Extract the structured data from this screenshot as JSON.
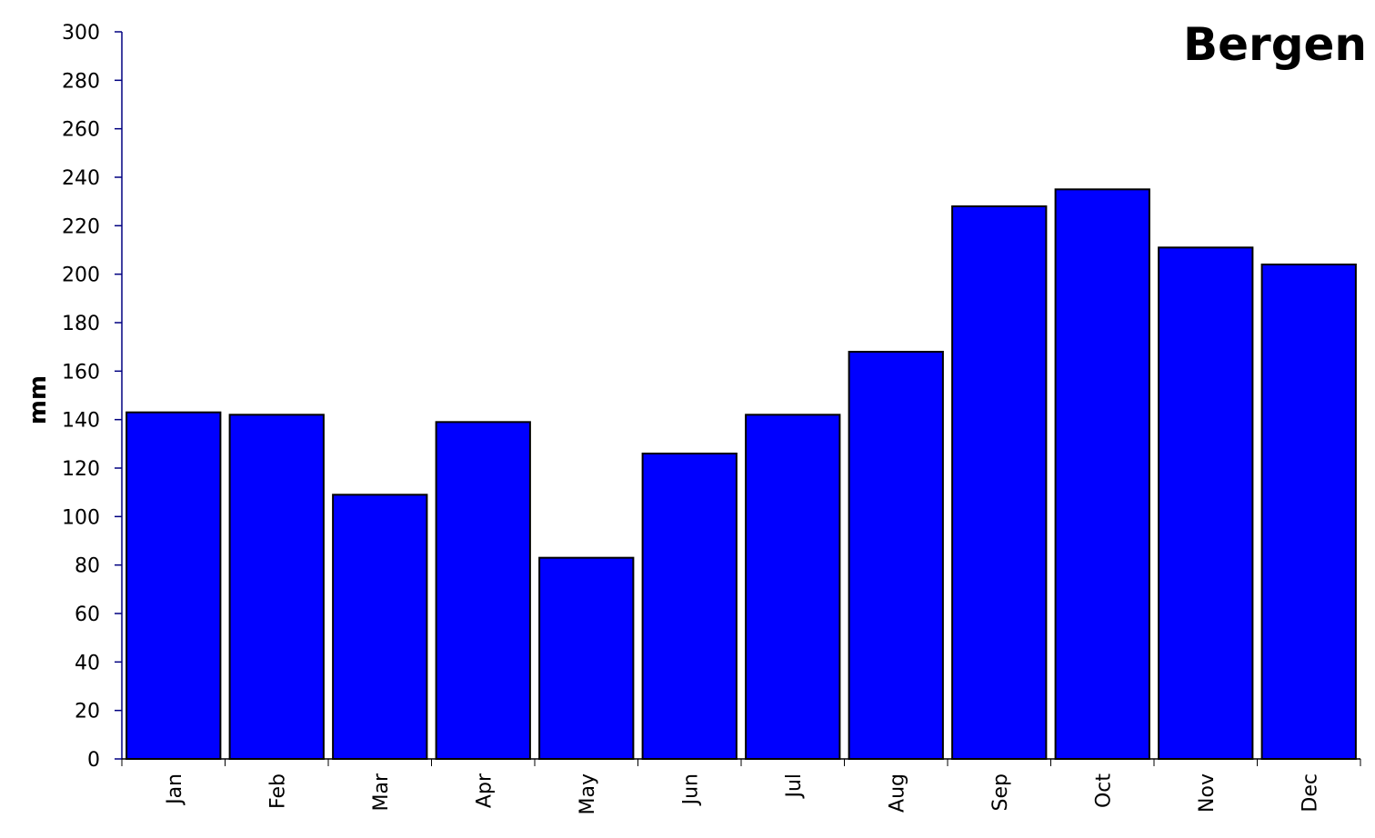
{
  "chart_data": {
    "type": "bar",
    "title": "Bergen",
    "y_label": "mm",
    "categories": [
      "Jan",
      "Feb",
      "Mar",
      "Apr",
      "May",
      "Jun",
      "Jul",
      "Aug",
      "Sep",
      "Oct",
      "Nov",
      "Dec"
    ],
    "values": [
      143,
      142,
      109,
      139,
      83,
      126,
      142,
      168,
      228,
      235,
      211,
      204
    ],
    "color": "#0000ff",
    "ylim": [
      0,
      300
    ],
    "yticks": [
      0,
      20,
      40,
      60,
      80,
      100,
      120,
      140,
      160,
      180,
      200,
      220,
      240,
      260,
      280,
      300
    ],
    "grid": false
  }
}
